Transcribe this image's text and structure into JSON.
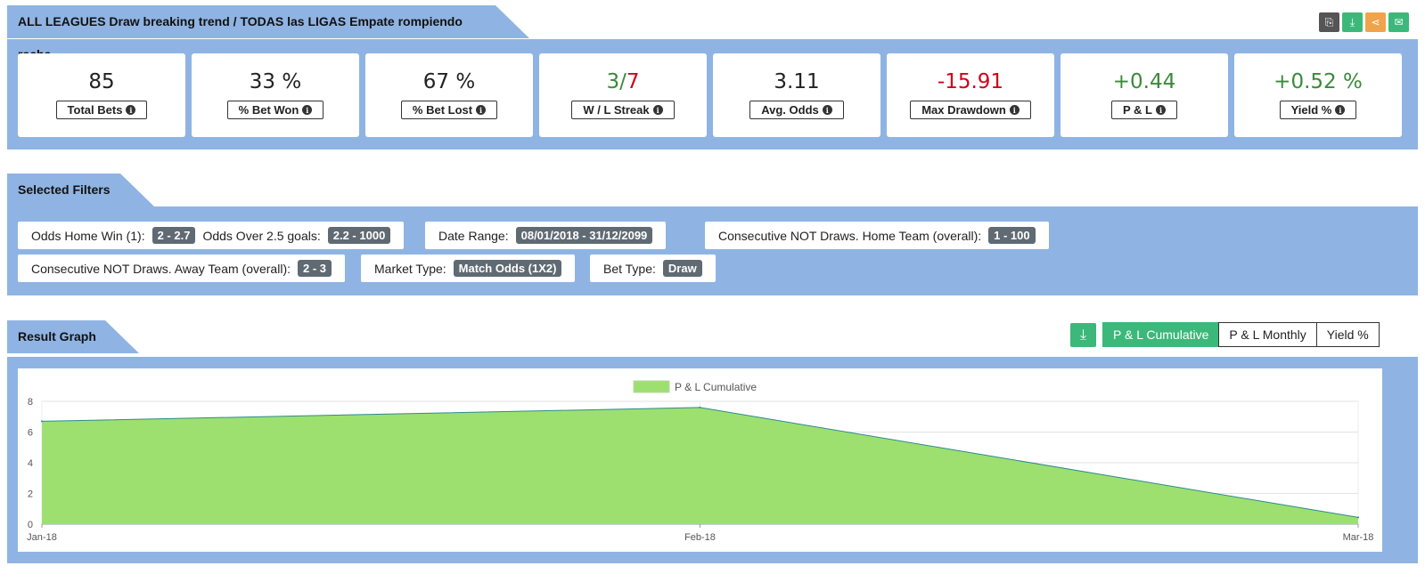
{
  "header": {
    "title": "ALL LEAGUES Draw breaking trend / TODAS las LIGAS Empate rompiendo racha",
    "icons": [
      {
        "name": "copy-icon",
        "color": "#555555",
        "glyph": "⎘"
      },
      {
        "name": "download-icon",
        "color": "#3cb87a",
        "glyph": "⤓"
      },
      {
        "name": "share-icon",
        "color": "#f0a34a",
        "glyph": "⋖"
      },
      {
        "name": "email-icon",
        "color": "#3cb87a",
        "glyph": "✉"
      }
    ]
  },
  "stats": [
    {
      "value": "85",
      "label": "Total Bets",
      "color": "#222222"
    },
    {
      "value": "33 %",
      "label": "% Bet Won",
      "color": "#222222"
    },
    {
      "value": "67 %",
      "label": "% Bet Lost",
      "color": "#222222"
    },
    {
      "value_win": "3",
      "value_sep": "/",
      "value_loss": "7",
      "label": "W / L Streak"
    },
    {
      "value": "3.11",
      "label": "Avg. Odds",
      "color": "#222222"
    },
    {
      "value": "-15.91",
      "label": "Max Drawdown",
      "color": "#d0021b"
    },
    {
      "value": "+0.44",
      "label": "P & L",
      "color": "#3a8a3a"
    },
    {
      "value": "+0.52 %",
      "label": "Yield %",
      "color": "#3a8a3a"
    }
  ],
  "filters_section": {
    "title": "Selected Filters",
    "filters": [
      {
        "label": "Odds Home Win (1):",
        "value": "2 - 2.7",
        "label2": "Odds Over 2.5 goals:",
        "value2": "2.2 - 1000"
      },
      {
        "label": "Date Range:",
        "value": "08/01/2018 - 31/12/2099"
      },
      {
        "label": "Consecutive NOT Draws. Home Team (overall):",
        "value": "1 - 100"
      },
      {
        "label": "Consecutive NOT Draws. Away Team (overall):",
        "value": "2 - 3"
      },
      {
        "label": "Market Type:",
        "value": "Match Odds (1X2)"
      },
      {
        "label": "Bet Type:",
        "value": "Draw"
      }
    ]
  },
  "graph_section": {
    "title": "Result Graph",
    "download_icon": "download-icon",
    "tabs": [
      "P & L Cumulative",
      "P & L Monthly",
      "Yield %"
    ],
    "active_tab": "P & L Cumulative"
  },
  "chart_data": {
    "type": "area",
    "categories": [
      "Jan-18",
      "Feb-18",
      "Mar-18"
    ],
    "series": [
      {
        "name": "P & L Cumulative",
        "values": [
          6.7,
          7.6,
          0.44
        ],
        "color": "#9de070"
      }
    ],
    "yticks": [
      0,
      2,
      4,
      6,
      8
    ],
    "ylim": [
      0,
      8
    ],
    "grid": true,
    "legend": "top-center"
  }
}
